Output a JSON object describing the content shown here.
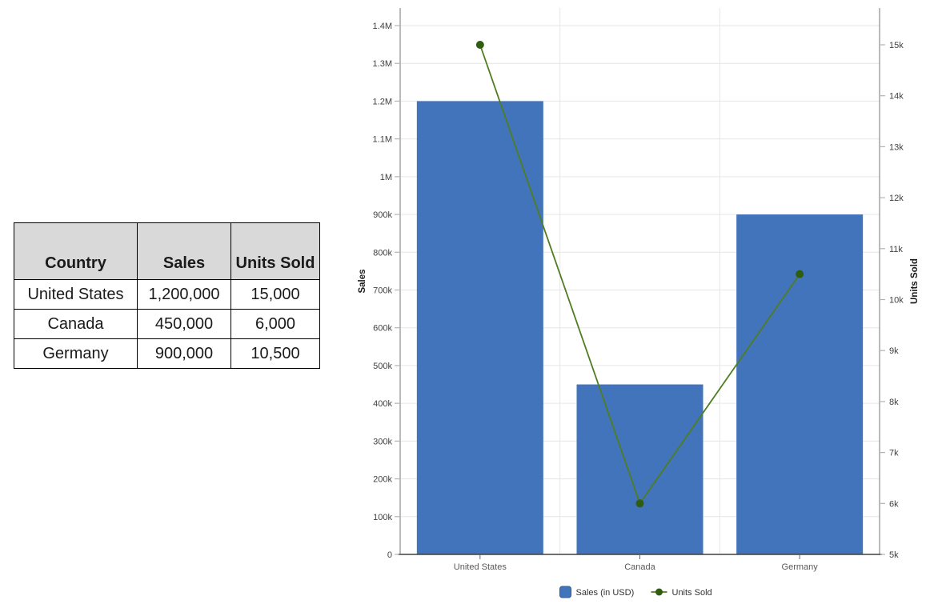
{
  "table": {
    "headers": [
      "Country",
      "Sales",
      "Units Sold"
    ],
    "rows": [
      [
        "United States",
        "1,200,000",
        "15,000"
      ],
      [
        "Canada",
        "450,000",
        "6,000"
      ],
      [
        "Germany",
        "900,000",
        "10,500"
      ]
    ]
  },
  "chart_data": {
    "type": "bar",
    "subtype": "combo-bar-line-dual-axis",
    "categories": [
      "United States",
      "Canada",
      "Germany"
    ],
    "series": [
      {
        "name": "Sales (in USD)",
        "kind": "bar",
        "axis": "left",
        "values": [
          1200000,
          450000,
          900000
        ]
      },
      {
        "name": "Units Sold",
        "kind": "line",
        "axis": "right",
        "values": [
          15000,
          6000,
          10500
        ]
      }
    ],
    "title": "",
    "xlabel": "",
    "left_axis": {
      "label": "Sales",
      "min": 0,
      "max": 1446600,
      "tick_values": [
        0,
        100000,
        200000,
        300000,
        400000,
        500000,
        600000,
        700000,
        800000,
        900000,
        1000000,
        1100000,
        1200000,
        1300000,
        1400000
      ],
      "tick_labels": [
        "0",
        "100k",
        "200k",
        "300k",
        "400k",
        "500k",
        "600k",
        "700k",
        "800k",
        "900k",
        "1M",
        "1.1M",
        "1.2M",
        "1.3M",
        "1.4M"
      ]
    },
    "right_axis": {
      "label": "Units Sold",
      "min": 5000,
      "max": 15722,
      "tick_values": [
        5000,
        6000,
        7000,
        8000,
        9000,
        10000,
        11000,
        12000,
        13000,
        14000,
        15000
      ],
      "tick_labels": [
        "5k",
        "6k",
        "7k",
        "8k",
        "9k",
        "10k",
        "11k",
        "12k",
        "13k",
        "14k",
        "15k"
      ]
    },
    "legend": [
      {
        "label": "Sales (in USD)",
        "swatch": "square"
      },
      {
        "label": "Units Sold",
        "swatch": "line-dot"
      }
    ],
    "legend_position": "bottom-center",
    "grid": true,
    "colors": {
      "bar_fill": "#4274bc",
      "bar_legend_border": "#30599b",
      "line_stroke": "#4f7d1f",
      "marker_fill": "#2f5e10",
      "grid_line": "#e6e6e6",
      "axis_line": "#8c8c8c",
      "baseline": "#404040",
      "tick_mark": "#b3b3b3",
      "tick_label": "#404040",
      "category_label": "#595959",
      "axis_title": "#1a1a1a",
      "legend_text": "#333333",
      "table_header_bg": "#d9d9d9"
    }
  }
}
